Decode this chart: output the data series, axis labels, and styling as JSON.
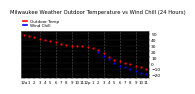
{
  "title": "Milwaukee Weather Outdoor Temperature vs Wind Chill (24 Hours)",
  "title_fontsize": 3.8,
  "background_color": "#ffffff",
  "plot_bg_color": "#000000",
  "grid_color": "#555555",
  "ylim": [
    -25,
    55
  ],
  "yticks": [
    -20,
    -10,
    0,
    10,
    20,
    30,
    40,
    50
  ],
  "ytick_fontsize": 3.2,
  "xtick_fontsize": 2.8,
  "legend_fontsize": 3.0,
  "temp_color": "#ff0000",
  "windchill_color": "#0000ff",
  "black_dot_color": "#000000",
  "series_size": 2.5,
  "hours": [
    0,
    1,
    2,
    3,
    4,
    5,
    6,
    7,
    8,
    9,
    10,
    11,
    12,
    13,
    14,
    15,
    16,
    17,
    18,
    19,
    20,
    21,
    22,
    23
  ],
  "hour_labels": [
    "12a",
    "1",
    "2",
    "3",
    "4",
    "5",
    "6",
    "7",
    "8",
    "9",
    "10",
    "11",
    "12p",
    "1",
    "2",
    "3",
    "4",
    "5",
    "6",
    "7",
    "8",
    "9",
    "10",
    "11"
  ],
  "temperature": [
    48,
    46,
    44,
    42,
    40,
    38,
    36,
    33,
    31,
    30,
    29,
    29,
    28,
    26,
    22,
    17,
    11,
    6,
    3,
    1,
    -1,
    -4,
    -7,
    -9
  ],
  "windchill": [
    null,
    null,
    null,
    null,
    null,
    null,
    null,
    null,
    null,
    null,
    null,
    null,
    null,
    null,
    19,
    13,
    7,
    1,
    -4,
    -7,
    -9,
    -13,
    -16,
    -19
  ],
  "gridline_positions": [
    3,
    6,
    9,
    12,
    15,
    18,
    21
  ],
  "legend_temp_label": "Outdoor Temp",
  "legend_wc_label": "Wind Chill"
}
